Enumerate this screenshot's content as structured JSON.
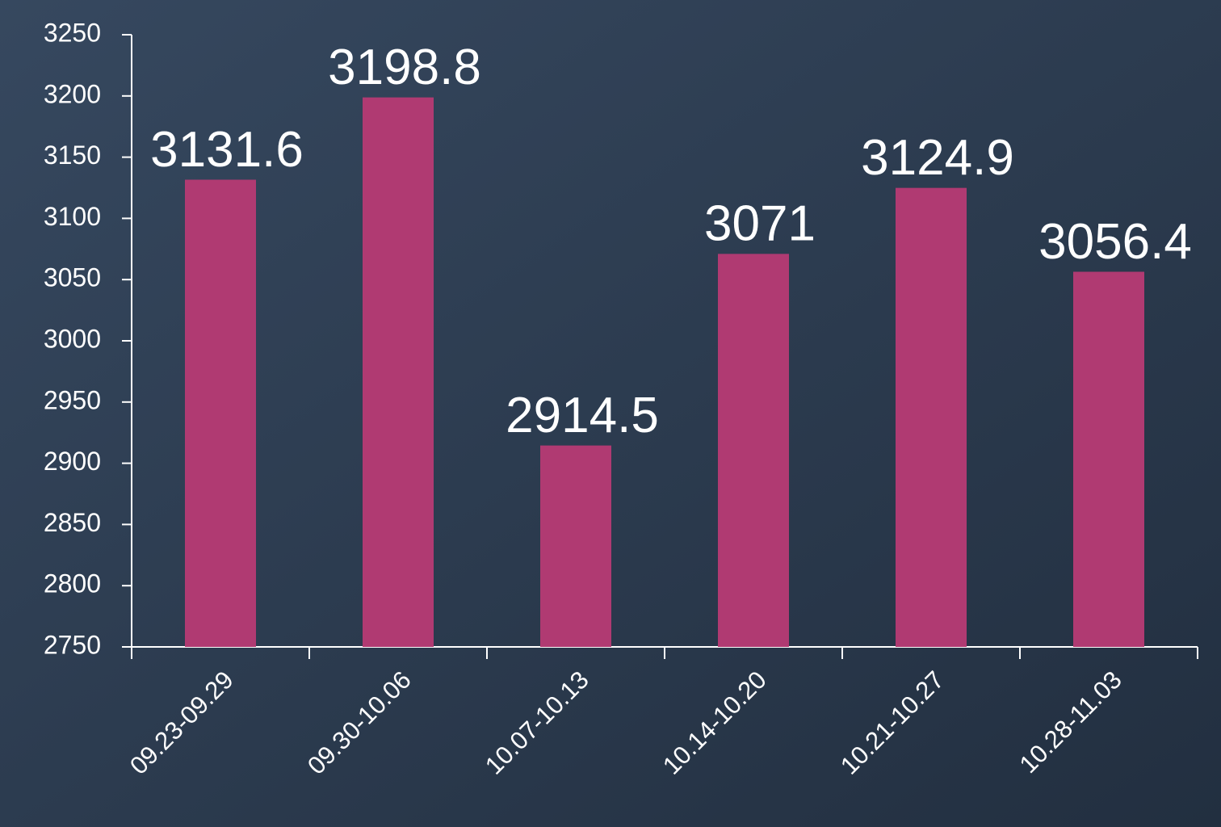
{
  "chart_data": {
    "type": "bar",
    "categories": [
      "09.23-09.29",
      "09.30-10.06",
      "10.07-10.13",
      "10.14-10.20",
      "10.21-10.27",
      "10.28-11.03"
    ],
    "values": [
      3131.6,
      3198.8,
      2914.5,
      3071,
      3124.9,
      3056.4
    ],
    "color": "#b03a72",
    "ylim": [
      2750,
      3250
    ],
    "yticks": [
      2750,
      2800,
      2850,
      2900,
      2950,
      3000,
      3050,
      3100,
      3150,
      3200,
      3250
    ],
    "grid": false
  }
}
